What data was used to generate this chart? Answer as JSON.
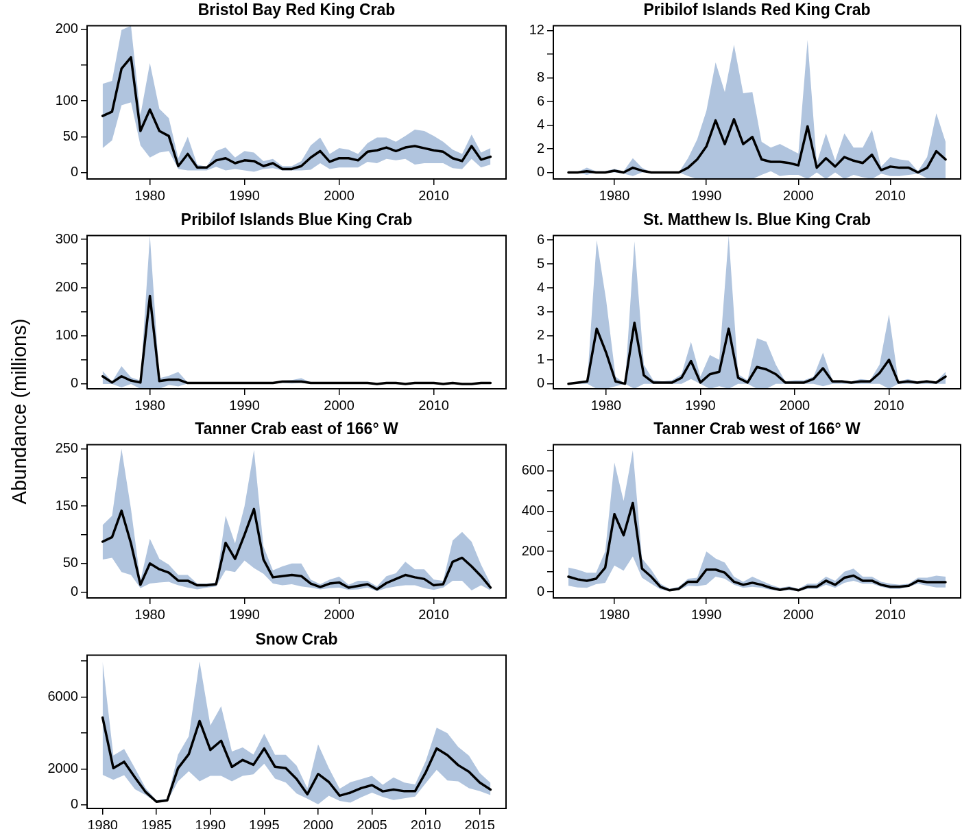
{
  "chart_data": [
    {
      "type": "line",
      "title": "Bristol Bay Red King Crab",
      "xlim": [
        1973.36,
        2017.64
      ],
      "xticks": [
        1980,
        1990,
        2000,
        2010
      ],
      "ylim": [
        -9,
        205
      ],
      "yticks": [
        0,
        50,
        100,
        {
          "value": 150,
          "label": null
        },
        200
      ],
      "grid": false,
      "marker": "none",
      "line_style": "solid",
      "x": [
        1975,
        1976,
        1977,
        1978,
        1979,
        1980,
        1981,
        1982,
        1983,
        1984,
        1985,
        1986,
        1987,
        1988,
        1989,
        1990,
        1991,
        1992,
        1993,
        1994,
        1995,
        1996,
        1997,
        1998,
        1999,
        2000,
        2001,
        2002,
        2003,
        2004,
        2005,
        2006,
        2007,
        2008,
        2009,
        2010,
        2011,
        2012,
        2013,
        2014,
        2015,
        2016
      ],
      "series": [
        {
          "color": "#000000",
          "values": [
            79,
            85,
            145,
            161,
            58,
            88,
            58,
            51,
            9,
            26,
            7,
            7,
            17,
            20,
            13,
            17,
            16,
            9,
            13,
            5,
            5,
            9,
            21,
            30,
            15,
            20,
            20,
            17,
            29,
            31,
            35,
            30,
            35,
            37,
            34,
            31,
            29,
            20,
            16,
            37,
            18,
            22
          ],
          "upper": [
            124,
            128,
            199,
            205,
            80,
            153,
            89,
            76,
            20,
            50,
            11,
            8,
            30,
            35,
            21,
            30,
            28,
            16,
            19,
            9,
            9,
            16,
            38,
            49,
            26,
            34,
            32,
            26,
            41,
            49,
            49,
            43,
            51,
            60,
            58,
            51,
            43,
            32,
            26,
            53,
            28,
            34
          ],
          "lower": [
            34,
            45,
            94,
            98,
            38,
            21,
            28,
            30,
            5,
            3,
            3,
            3,
            8,
            3,
            5,
            3,
            1,
            5,
            6,
            3,
            3,
            3,
            4,
            13,
            5,
            7,
            7,
            7,
            15,
            13,
            19,
            17,
            19,
            11,
            13,
            13,
            13,
            6,
            5,
            19,
            7,
            11
          ]
        }
      ]
    },
    {
      "type": "line",
      "title": "Pribilof Islands Red King Crab",
      "xlim": [
        1973.36,
        2017.64
      ],
      "xticks": [
        1980,
        1990,
        2000,
        2010
      ],
      "ylim": [
        -0.55,
        12.4
      ],
      "yticks": [
        0,
        2,
        4,
        6,
        8,
        {
          "value": 10,
          "label": null
        },
        12
      ],
      "grid": false,
      "marker": "none",
      "line_style": "solid",
      "x": [
        1975,
        1976,
        1977,
        1978,
        1979,
        1980,
        1981,
        1982,
        1983,
        1984,
        1985,
        1986,
        1987,
        1988,
        1989,
        1990,
        1991,
        1992,
        1993,
        1994,
        1995,
        1996,
        1997,
        1998,
        1999,
        2000,
        2001,
        2002,
        2003,
        2004,
        2005,
        2006,
        2007,
        2008,
        2009,
        2010,
        2011,
        2012,
        2013,
        2014,
        2015,
        2016
      ],
      "series": [
        {
          "color": "#000000",
          "values": [
            0,
            0,
            0.1,
            0,
            0,
            0.15,
            0,
            0.4,
            0.15,
            0,
            0,
            0,
            0,
            0.4,
            1.1,
            2.2,
            4.4,
            2.4,
            4.5,
            2.4,
            3.0,
            1.1,
            0.9,
            0.9,
            0.8,
            0.6,
            3.9,
            0.4,
            1.2,
            0.5,
            1.3,
            1.0,
            0.8,
            1.5,
            0.2,
            0.5,
            0.4,
            0.4,
            0,
            0.4,
            1.8,
            1.1
          ],
          "upper": [
            0,
            0.05,
            0.4,
            0.1,
            0.1,
            0.3,
            0.1,
            1.2,
            0.4,
            0,
            0,
            0,
            0,
            1.2,
            2.8,
            5.2,
            9.3,
            6.8,
            10.8,
            6.7,
            6.8,
            2.6,
            2.1,
            2.4,
            2.0,
            1.6,
            11.2,
            0.8,
            3.3,
            1.0,
            3.3,
            2.1,
            2.1,
            3.6,
            0.5,
            1.3,
            1.1,
            1.0,
            0.1,
            1.3,
            5.0,
            2.6
          ],
          "lower": [
            0,
            0,
            -0.2,
            0,
            0,
            0,
            -0.1,
            -0.3,
            0,
            0,
            0,
            0,
            0,
            -0.3,
            -0.55,
            -0.55,
            -0.55,
            -0.55,
            -0.55,
            -0.55,
            -0.55,
            -0.2,
            0.1,
            -0.3,
            -0.2,
            -0.2,
            -0.55,
            0,
            -0.55,
            0,
            -0.55,
            -0.2,
            -0.4,
            -0.55,
            -0.1,
            -0.3,
            -0.3,
            -0.2,
            -0.1,
            -0.5,
            -0.55,
            -0.55
          ]
        }
      ]
    },
    {
      "type": "line",
      "title": "Pribilof Islands Blue King Crab",
      "ylabel": "Abundance (millions)",
      "xlim": [
        1973.36,
        2017.64
      ],
      "xticks": [
        1980,
        1990,
        2000,
        2010
      ],
      "ylim": [
        -10,
        308
      ],
      "yticks": [
        0,
        {
          "value": 50,
          "label": null
        },
        100,
        {
          "value": 150,
          "label": null
        },
        200,
        {
          "value": 250,
          "label": null
        },
        300
      ],
      "grid": false,
      "marker": "none",
      "line_style": "solid",
      "x": [
        1975,
        1976,
        1977,
        1978,
        1979,
        1980,
        1981,
        1982,
        1983,
        1984,
        1985,
        1986,
        1987,
        1988,
        1989,
        1990,
        1991,
        1992,
        1993,
        1994,
        1995,
        1996,
        1997,
        1998,
        1999,
        2000,
        2001,
        2002,
        2003,
        2004,
        2005,
        2006,
        2007,
        2008,
        2009,
        2010,
        2011,
        2012,
        2013,
        2014,
        2015,
        2016
      ],
      "series": [
        {
          "color": "#000000",
          "values": [
            16,
            3,
            16,
            7,
            3,
            183,
            6,
            9,
            9,
            2,
            2,
            2,
            2,
            2,
            2,
            2,
            2,
            2,
            2,
            5,
            5,
            5,
            2,
            2,
            2,
            2,
            2,
            2,
            2,
            0,
            2,
            2,
            0,
            2,
            2,
            2,
            0,
            2,
            0,
            0,
            2,
            2
          ],
          "upper": [
            27,
            5,
            37,
            14,
            7,
            308,
            12,
            17,
            25,
            3,
            3,
            3,
            3,
            3,
            3,
            3,
            3,
            3,
            3,
            7,
            8,
            12,
            3,
            3,
            3,
            3,
            3,
            3,
            3,
            1,
            3,
            3,
            1,
            3,
            3,
            3,
            1,
            3,
            1,
            1,
            3,
            3
          ],
          "lower": [
            0,
            0,
            -7,
            0,
            -10,
            -10,
            -10,
            -2,
            -5,
            1,
            1,
            1,
            1,
            1,
            1,
            1,
            1,
            1,
            1,
            2,
            1,
            2,
            1,
            1,
            1,
            1,
            1,
            1,
            1,
            -1,
            1,
            1,
            -1,
            1,
            1,
            1,
            -1,
            1,
            -1,
            -1,
            1,
            1
          ]
        }
      ]
    },
    {
      "type": "line",
      "title": "St. Matthew Is. Blue King Crab",
      "xlim": [
        1974.4,
        2017.6
      ],
      "xticks": [
        1980,
        1990,
        2000,
        2010
      ],
      "ylim": [
        -0.21,
        6.19
      ],
      "yticks": [
        0,
        1,
        2,
        3,
        4,
        5,
        6
      ],
      "grid": false,
      "marker": "none",
      "line_style": "solid",
      "x": [
        1976,
        1977,
        1978,
        1979,
        1980,
        1981,
        1982,
        1983,
        1984,
        1985,
        1986,
        1987,
        1988,
        1989,
        1990,
        1991,
        1992,
        1993,
        1994,
        1995,
        1996,
        1997,
        1998,
        1999,
        2000,
        2001,
        2002,
        2003,
        2004,
        2005,
        2006,
        2007,
        2008,
        2009,
        2010,
        2011,
        2012,
        2013,
        2014,
        2015,
        2016
      ],
      "series": [
        {
          "color": "#000000",
          "values": [
            0,
            0.05,
            0.1,
            2.3,
            1.3,
            0.1,
            0,
            2.55,
            0.35,
            0.05,
            0.05,
            0.05,
            0.25,
            0.95,
            0.05,
            0.4,
            0.5,
            2.3,
            0.25,
            0.05,
            0.7,
            0.6,
            0.4,
            0.05,
            0.05,
            0.05,
            0.2,
            0.65,
            0.1,
            0.1,
            0.05,
            0.1,
            0.1,
            0.45,
            1.0,
            0.05,
            0.1,
            0.05,
            0.1,
            0.05,
            0.3
          ],
          "upper": [
            0,
            0.05,
            0.1,
            6.0,
            3.5,
            0.3,
            0,
            5.95,
            0.8,
            0.15,
            0.1,
            0.15,
            0.4,
            1.75,
            0.3,
            1.2,
            1.0,
            6.19,
            0.4,
            0.15,
            1.9,
            1.75,
            0.8,
            0.1,
            0.15,
            0.15,
            0.3,
            1.3,
            0.15,
            0.15,
            0.1,
            0.2,
            0.15,
            0.8,
            2.9,
            0.1,
            0.2,
            0.1,
            0.15,
            0.1,
            0.5
          ],
          "lower": [
            0,
            0,
            0,
            -0.21,
            -0.21,
            -0.1,
            0,
            -0.21,
            0,
            0,
            0,
            0,
            0,
            0.2,
            0,
            -0.21,
            -0.1,
            -0.21,
            0,
            0,
            -0.21,
            -0.21,
            0,
            0,
            0,
            0,
            0,
            -0.1,
            0,
            0,
            0,
            0,
            0,
            0,
            -0.21,
            0,
            0,
            0,
            0,
            0,
            0
          ]
        }
      ]
    },
    {
      "type": "line",
      "title": "Tanner Crab east of 166° W",
      "xlim": [
        1973.36,
        2017.64
      ],
      "xticks": [
        1980,
        1990,
        2000,
        2010
      ],
      "ylim": [
        -10,
        257
      ],
      "yticks": [
        0,
        50,
        {
          "value": 100,
          "label": null
        },
        150,
        {
          "value": 200,
          "label": null
        },
        250
      ],
      "grid": false,
      "marker": "none",
      "line_style": "solid",
      "x": [
        1975,
        1976,
        1977,
        1978,
        1979,
        1980,
        1981,
        1982,
        1983,
        1984,
        1985,
        1986,
        1987,
        1988,
        1989,
        1990,
        1991,
        1992,
        1993,
        1994,
        1995,
        1996,
        1997,
        1998,
        1999,
        2000,
        2001,
        2002,
        2003,
        2004,
        2005,
        2006,
        2007,
        2008,
        2009,
        2010,
        2011,
        2012,
        2013,
        2014,
        2015,
        2016
      ],
      "series": [
        {
          "color": "#000000",
          "values": [
            88,
            96,
            142,
            85,
            13,
            50,
            40,
            34,
            20,
            20,
            12,
            12,
            14,
            86,
            58,
            100,
            145,
            57,
            26,
            28,
            30,
            28,
            15,
            9,
            15,
            17,
            8,
            11,
            14,
            5,
            16,
            23,
            30,
            26,
            23,
            12,
            14,
            53,
            60,
            45,
            28,
            8
          ],
          "upper": [
            117,
            133,
            250,
            145,
            20,
            93,
            58,
            48,
            30,
            30,
            15,
            15,
            17,
            133,
            85,
            150,
            248,
            80,
            38,
            45,
            50,
            50,
            22,
            14,
            22,
            27,
            13,
            20,
            20,
            10,
            28,
            33,
            53,
            40,
            40,
            22,
            20,
            90,
            105,
            88,
            48,
            15
          ],
          "lower": [
            57,
            60,
            35,
            30,
            7,
            15,
            17,
            18,
            12,
            8,
            5,
            8,
            10,
            38,
            35,
            55,
            42,
            32,
            15,
            12,
            14,
            10,
            8,
            5,
            7,
            8,
            4,
            5,
            8,
            2,
            7,
            10,
            12,
            12,
            7,
            4,
            8,
            20,
            20,
            3,
            12,
            3
          ]
        }
      ]
    },
    {
      "type": "line",
      "title": "Tanner Crab west of 166° W",
      "xlim": [
        1973.36,
        2017.64
      ],
      "xticks": [
        1980,
        1990,
        2000,
        2010
      ],
      "ylim": [
        -30,
        728
      ],
      "yticks": [
        0,
        {
          "value": 100,
          "label": null
        },
        200,
        {
          "value": 300,
          "label": null
        },
        400,
        {
          "value": 500,
          "label": null
        },
        600,
        {
          "value": 700,
          "label": null
        }
      ],
      "grid": false,
      "marker": "none",
      "line_style": "solid",
      "x": [
        1975,
        1976,
        1977,
        1978,
        1979,
        1980,
        1981,
        1982,
        1983,
        1984,
        1985,
        1986,
        1987,
        1988,
        1989,
        1990,
        1991,
        1992,
        1993,
        1994,
        1995,
        1996,
        1997,
        1998,
        1999,
        2000,
        2001,
        2002,
        2003,
        2004,
        2005,
        2006,
        2007,
        2008,
        2009,
        2010,
        2011,
        2012,
        2013,
        2014,
        2015,
        2016
      ],
      "series": [
        {
          "color": "#000000",
          "values": [
            75,
            62,
            55,
            65,
            120,
            385,
            280,
            440,
            115,
            75,
            25,
            8,
            15,
            50,
            50,
            110,
            110,
            95,
            50,
            35,
            45,
            35,
            20,
            10,
            18,
            8,
            25,
            25,
            55,
            35,
            70,
            80,
            55,
            55,
            35,
            25,
            25,
            30,
            55,
            48,
            48,
            48
          ],
          "upper": [
            120,
            110,
            95,
            95,
            200,
            640,
            450,
            700,
            165,
            110,
            40,
            15,
            25,
            65,
            70,
            200,
            165,
            145,
            75,
            50,
            75,
            55,
            35,
            20,
            28,
            15,
            40,
            40,
            75,
            55,
            100,
            115,
            75,
            75,
            50,
            40,
            35,
            40,
            70,
            70,
            80,
            75
          ],
          "lower": [
            30,
            22,
            20,
            38,
            45,
            130,
            105,
            175,
            70,
            40,
            12,
            3,
            8,
            30,
            28,
            35,
            75,
            65,
            35,
            20,
            25,
            20,
            10,
            5,
            8,
            3,
            15,
            15,
            35,
            20,
            45,
            55,
            40,
            40,
            25,
            15,
            15,
            25,
            40,
            30,
            22,
            22
          ]
        }
      ]
    },
    {
      "type": "line",
      "title": "Snow Crab",
      "xlim": [
        1978.56,
        2017.44
      ],
      "xticks": [
        1980,
        1985,
        1990,
        1995,
        2000,
        2005,
        2010,
        2015
      ],
      "ylim": [
        -200,
        8330
      ],
      "yticks": [
        0,
        2000,
        {
          "value": 4000,
          "label": null
        },
        6000,
        {
          "value": 8000,
          "label": null
        }
      ],
      "grid": false,
      "marker": "none",
      "line_style": "solid",
      "x": [
        1980,
        1981,
        1982,
        1983,
        1984,
        1985,
        1986,
        1987,
        1988,
        1989,
        1990,
        1991,
        1992,
        1993,
        1994,
        1995,
        1996,
        1997,
        1998,
        1999,
        2000,
        2001,
        2002,
        2003,
        2004,
        2005,
        2006,
        2007,
        2008,
        2009,
        2010,
        2011,
        2012,
        2013,
        2014,
        2015,
        2016
      ],
      "series": [
        {
          "color": "#000000",
          "values": [
            4860,
            2040,
            2400,
            1530,
            710,
            170,
            250,
            2040,
            2820,
            4670,
            3060,
            3570,
            2110,
            2500,
            2230,
            3140,
            2120,
            2040,
            1440,
            590,
            1720,
            1270,
            510,
            680,
            930,
            1100,
            750,
            850,
            760,
            760,
            1820,
            3140,
            2770,
            2210,
            1840,
            1240,
            850
          ],
          "upper": [
            7990,
            2750,
            3110,
            2040,
            930,
            250,
            340,
            2800,
            3820,
            7990,
            4420,
            5490,
            2970,
            3200,
            2800,
            3960,
            2790,
            2790,
            2190,
            930,
            3370,
            2040,
            900,
            1260,
            1430,
            1610,
            1120,
            1530,
            1240,
            1140,
            2450,
            4300,
            3990,
            3230,
            2740,
            1780,
            1220
          ],
          "lower": [
            1670,
            1390,
            1650,
            870,
            540,
            120,
            200,
            1310,
            1870,
            1310,
            1610,
            1610,
            1310,
            1610,
            1700,
            2290,
            1460,
            1240,
            630,
            340,
            30,
            510,
            220,
            120,
            420,
            680,
            440,
            270,
            360,
            460,
            1210,
            1950,
            1360,
            1310,
            930,
            760,
            540
          ]
        }
      ]
    }
  ]
}
